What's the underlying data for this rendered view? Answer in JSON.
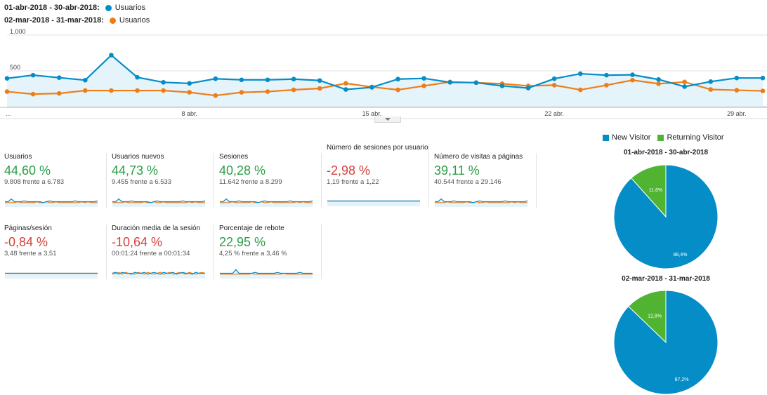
{
  "legend": {
    "current_range": "01-abr-2018 - 30-abr-2018:",
    "previous_range": "02-mar-2018 - 31-mar-2018:",
    "metric": "Usuarios",
    "current_color": "#058dc7",
    "previous_color": "#ed7e17"
  },
  "chart_data": [
    {
      "type": "line",
      "title": "",
      "y_tick_labels": [
        "1.000",
        "500"
      ],
      "ylim": [
        0,
        1000
      ],
      "x_tick_labels": [
        "...",
        "8 abr.",
        "15 abr.",
        "22 abr.",
        "29 abr."
      ],
      "x": [
        1,
        2,
        3,
        4,
        5,
        6,
        7,
        8,
        9,
        10,
        11,
        12,
        13,
        14,
        15,
        16,
        17,
        18,
        19,
        20,
        21,
        22,
        23,
        24,
        25,
        26,
        27,
        28,
        29,
        30
      ],
      "series": [
        {
          "name": "Usuarios",
          "values": [
            395,
            440,
            405,
            370,
            720,
            410,
            340,
            325,
            390,
            375,
            375,
            385,
            365,
            240,
            270,
            385,
            395,
            340,
            335,
            290,
            260,
            390,
            460,
            440,
            445,
            380,
            280,
            350,
            400,
            400
          ]
        },
        {
          "name": "Usuarios",
          "values": [
            210,
            175,
            185,
            225,
            225,
            225,
            225,
            200,
            155,
            200,
            210,
            235,
            255,
            325,
            275,
            235,
            290,
            345,
            335,
            320,
            290,
            300,
            235,
            300,
            370,
            320,
            345,
            240,
            230,
            220
          ]
        }
      ],
      "grid": true
    },
    {
      "type": "pie",
      "title": "01-abr-2018 - 30-abr-2018",
      "labels": [
        "New Visitor",
        "Returning Visitor"
      ],
      "values": [
        88.4,
        11.6
      ],
      "value_labels": [
        "88,4%",
        "11,6%"
      ]
    },
    {
      "type": "pie",
      "title": "02-mar-2018 - 31-mar-2018",
      "labels": [
        "New Visitor",
        "Returning Visitor"
      ],
      "values": [
        87.2,
        12.8
      ],
      "value_labels": [
        "87,2%",
        "12,8%"
      ]
    }
  ],
  "pie_legend": {
    "new_label": "New Visitor",
    "returning_label": "Returning Visitor",
    "new_color": "#058dc7",
    "returning_color": "#50b432"
  },
  "cards": [
    {
      "label": "Usuarios",
      "value": "44,60 %",
      "compare": "9.808 frente a 6.783",
      "trend": "positive",
      "spark_a": [
        5,
        5,
        8,
        5,
        5,
        5,
        6,
        5,
        5,
        5,
        5,
        5,
        4,
        5,
        6,
        5,
        5,
        5,
        5,
        5,
        5,
        5,
        6,
        5,
        5,
        5,
        5,
        5,
        5,
        6
      ],
      "spark_b": [
        4,
        4,
        4,
        4,
        5,
        4,
        4,
        4,
        4,
        4,
        5,
        4,
        4,
        5,
        4,
        4,
        5,
        4,
        4,
        4,
        4,
        4,
        4,
        4,
        5,
        4,
        5,
        4,
        4,
        4
      ]
    },
    {
      "label": "Usuarios nuevos",
      "value": "44,73 %",
      "compare": "9.455 frente a 6.533",
      "trend": "positive",
      "spark_a": [
        5,
        5,
        8,
        5,
        5,
        5,
        6,
        5,
        5,
        5,
        5,
        5,
        4,
        5,
        6,
        5,
        5,
        5,
        5,
        5,
        5,
        5,
        6,
        5,
        5,
        5,
        5,
        5,
        5,
        6
      ],
      "spark_b": [
        4,
        4,
        4,
        4,
        5,
        4,
        4,
        4,
        4,
        4,
        5,
        4,
        4,
        5,
        4,
        4,
        5,
        4,
        4,
        4,
        4,
        4,
        4,
        4,
        5,
        4,
        5,
        4,
        4,
        4
      ]
    },
    {
      "label": "Sesiones",
      "value": "40,28 %",
      "compare": "11.642 frente a 8.299",
      "trend": "positive",
      "spark_a": [
        5,
        5,
        8,
        5,
        5,
        5,
        6,
        5,
        5,
        5,
        5,
        5,
        4,
        5,
        6,
        5,
        5,
        5,
        5,
        5,
        5,
        5,
        6,
        5,
        5,
        5,
        5,
        5,
        5,
        6
      ],
      "spark_b": [
        4,
        4,
        4,
        4,
        5,
        4,
        4,
        4,
        4,
        4,
        5,
        4,
        4,
        5,
        4,
        4,
        5,
        4,
        4,
        4,
        4,
        4,
        4,
        4,
        5,
        4,
        5,
        4,
        4,
        4
      ]
    },
    {
      "label": "Número de sesiones por usuario",
      "value": "-2,98 %",
      "compare": "1,19 frente a 1,22",
      "trend": "negative",
      "spark_a": [
        5,
        5,
        5,
        5,
        5,
        5,
        5,
        5,
        5,
        5,
        5,
        5,
        5,
        5,
        5,
        5,
        5,
        5,
        5,
        5,
        5,
        5,
        5,
        5,
        5,
        5,
        5,
        5,
        5,
        5
      ],
      "spark_b": [
        5,
        5,
        5,
        5,
        5,
        5,
        5,
        5,
        5,
        5,
        5,
        5,
        5,
        5,
        5,
        5,
        5,
        5,
        5,
        5,
        5,
        5,
        5,
        5,
        5,
        5,
        5,
        5,
        5,
        5
      ]
    },
    {
      "label": "Número de visitas a páginas",
      "value": "39,11 %",
      "compare": "40.544 frente a 29.146",
      "trend": "positive",
      "spark_a": [
        5,
        5,
        8,
        5,
        5,
        5,
        6,
        5,
        5,
        5,
        5,
        5,
        4,
        5,
        6,
        5,
        5,
        5,
        5,
        5,
        5,
        5,
        6,
        5,
        5,
        5,
        5,
        5,
        5,
        6
      ],
      "spark_b": [
        4,
        4,
        4,
        4,
        5,
        4,
        4,
        4,
        4,
        4,
        5,
        4,
        4,
        5,
        4,
        4,
        5,
        4,
        4,
        4,
        4,
        4,
        4,
        4,
        5,
        4,
        5,
        4,
        4,
        4
      ]
    },
    {
      "label": "Páginas/sesión",
      "value": "-0,84 %",
      "compare": "3,48 frente a 3,51",
      "trend": "negative",
      "spark_a": [
        5,
        5,
        5,
        5,
        5,
        5,
        5,
        5,
        5,
        5,
        5,
        5,
        5,
        5,
        5,
        5,
        5,
        5,
        5,
        5,
        5,
        5,
        5,
        5,
        5,
        5,
        5,
        5,
        5,
        5
      ],
      "spark_b": [
        5,
        5,
        5,
        5,
        5,
        5,
        5,
        5,
        5,
        5,
        5,
        5,
        5,
        5,
        5,
        5,
        5,
        5,
        5,
        5,
        5,
        5,
        5,
        5,
        5,
        5,
        5,
        5,
        5,
        5
      ]
    },
    {
      "label": "Duración media de la sesión",
      "value": "-10,64 %",
      "compare": "00:01:24 frente a 00:01:34",
      "trend": "negative",
      "spark_a": [
        5,
        6,
        4,
        6,
        5,
        5,
        4,
        6,
        5,
        5,
        6,
        4,
        5,
        6,
        5,
        4,
        6,
        5,
        5,
        6,
        4,
        5,
        6,
        5,
        5,
        4,
        6,
        5,
        5,
        5
      ],
      "spark_b": [
        4,
        5,
        6,
        4,
        6,
        5,
        5,
        4,
        6,
        5,
        4,
        6,
        5,
        4,
        5,
        6,
        4,
        5,
        6,
        4,
        5,
        6,
        5,
        4,
        6,
        5,
        4,
        5,
        6,
        5
      ]
    },
    {
      "label": "Porcentaje de rebote",
      "value": "22,95 %",
      "compare": "4,25 % frente a 3,46 %",
      "trend": "positive",
      "spark_a": [
        5,
        5,
        5,
        5,
        5,
        9,
        5,
        5,
        5,
        5,
        5,
        6,
        5,
        5,
        5,
        5,
        5,
        5,
        6,
        5,
        5,
        5,
        5,
        5,
        5,
        6,
        5,
        5,
        5,
        5
      ],
      "spark_b": [
        4,
        4,
        4,
        4,
        4,
        4,
        4,
        4,
        4,
        4,
        5,
        4,
        4,
        4,
        4,
        4,
        4,
        4,
        4,
        4,
        5,
        4,
        4,
        4,
        4,
        4,
        4,
        4,
        4,
        4
      ]
    }
  ]
}
